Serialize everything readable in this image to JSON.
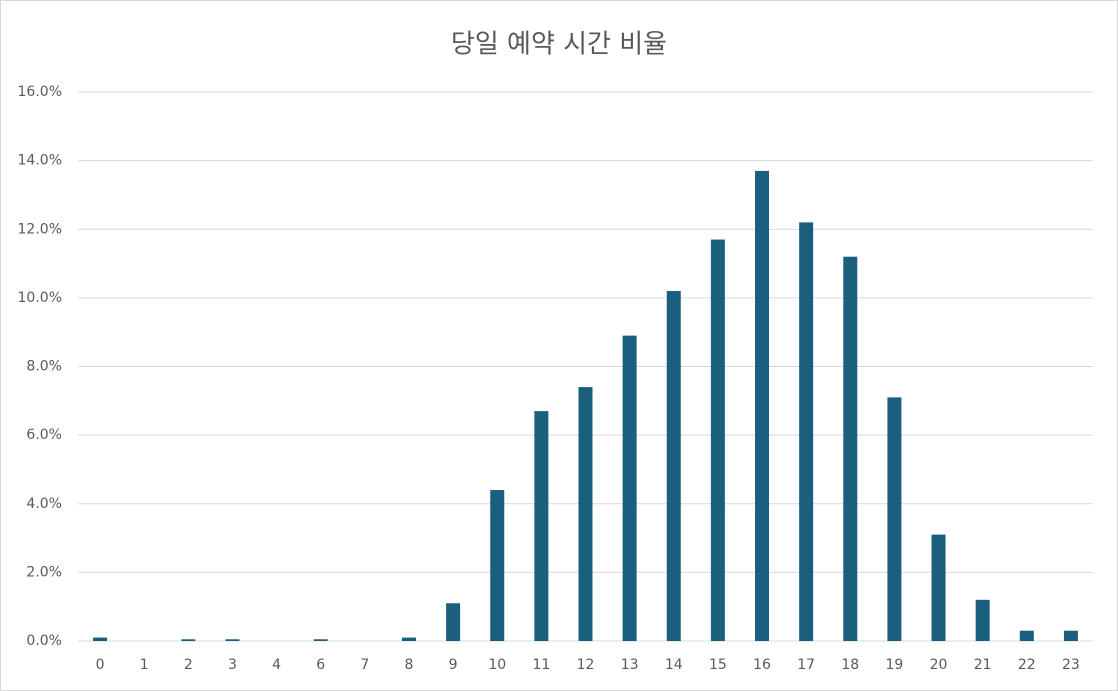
{
  "chart_data": {
    "type": "bar",
    "title": "당일 예약 시간 비율",
    "categories": [
      "0",
      "1",
      "2",
      "3",
      "4",
      "6",
      "7",
      "8",
      "9",
      "10",
      "11",
      "12",
      "13",
      "14",
      "15",
      "16",
      "17",
      "18",
      "19",
      "20",
      "21",
      "22",
      "23"
    ],
    "values": [
      0.1,
      0,
      0.05,
      0.05,
      0,
      0.05,
      0,
      0.1,
      1.1,
      4.4,
      6.7,
      7.4,
      8.9,
      10.2,
      11.7,
      13.7,
      12.2,
      11.2,
      7.1,
      3.1,
      1.2,
      0.3,
      0.3
    ],
    "color": "#1b5f7f",
    "ylim": [
      0,
      16
    ],
    "yticks": [
      {
        "value": 0,
        "label": "0.0%"
      },
      {
        "value": 2,
        "label": "2.0%"
      },
      {
        "value": 4,
        "label": "4.0%"
      },
      {
        "value": 6,
        "label": "6.0%"
      },
      {
        "value": 8,
        "label": "8.0%"
      },
      {
        "value": 10,
        "label": "10.0%"
      },
      {
        "value": 12,
        "label": "12.0%"
      },
      {
        "value": 14,
        "label": "14.0%"
      },
      {
        "value": 16,
        "label": "16.0%"
      }
    ],
    "grid": true
  }
}
